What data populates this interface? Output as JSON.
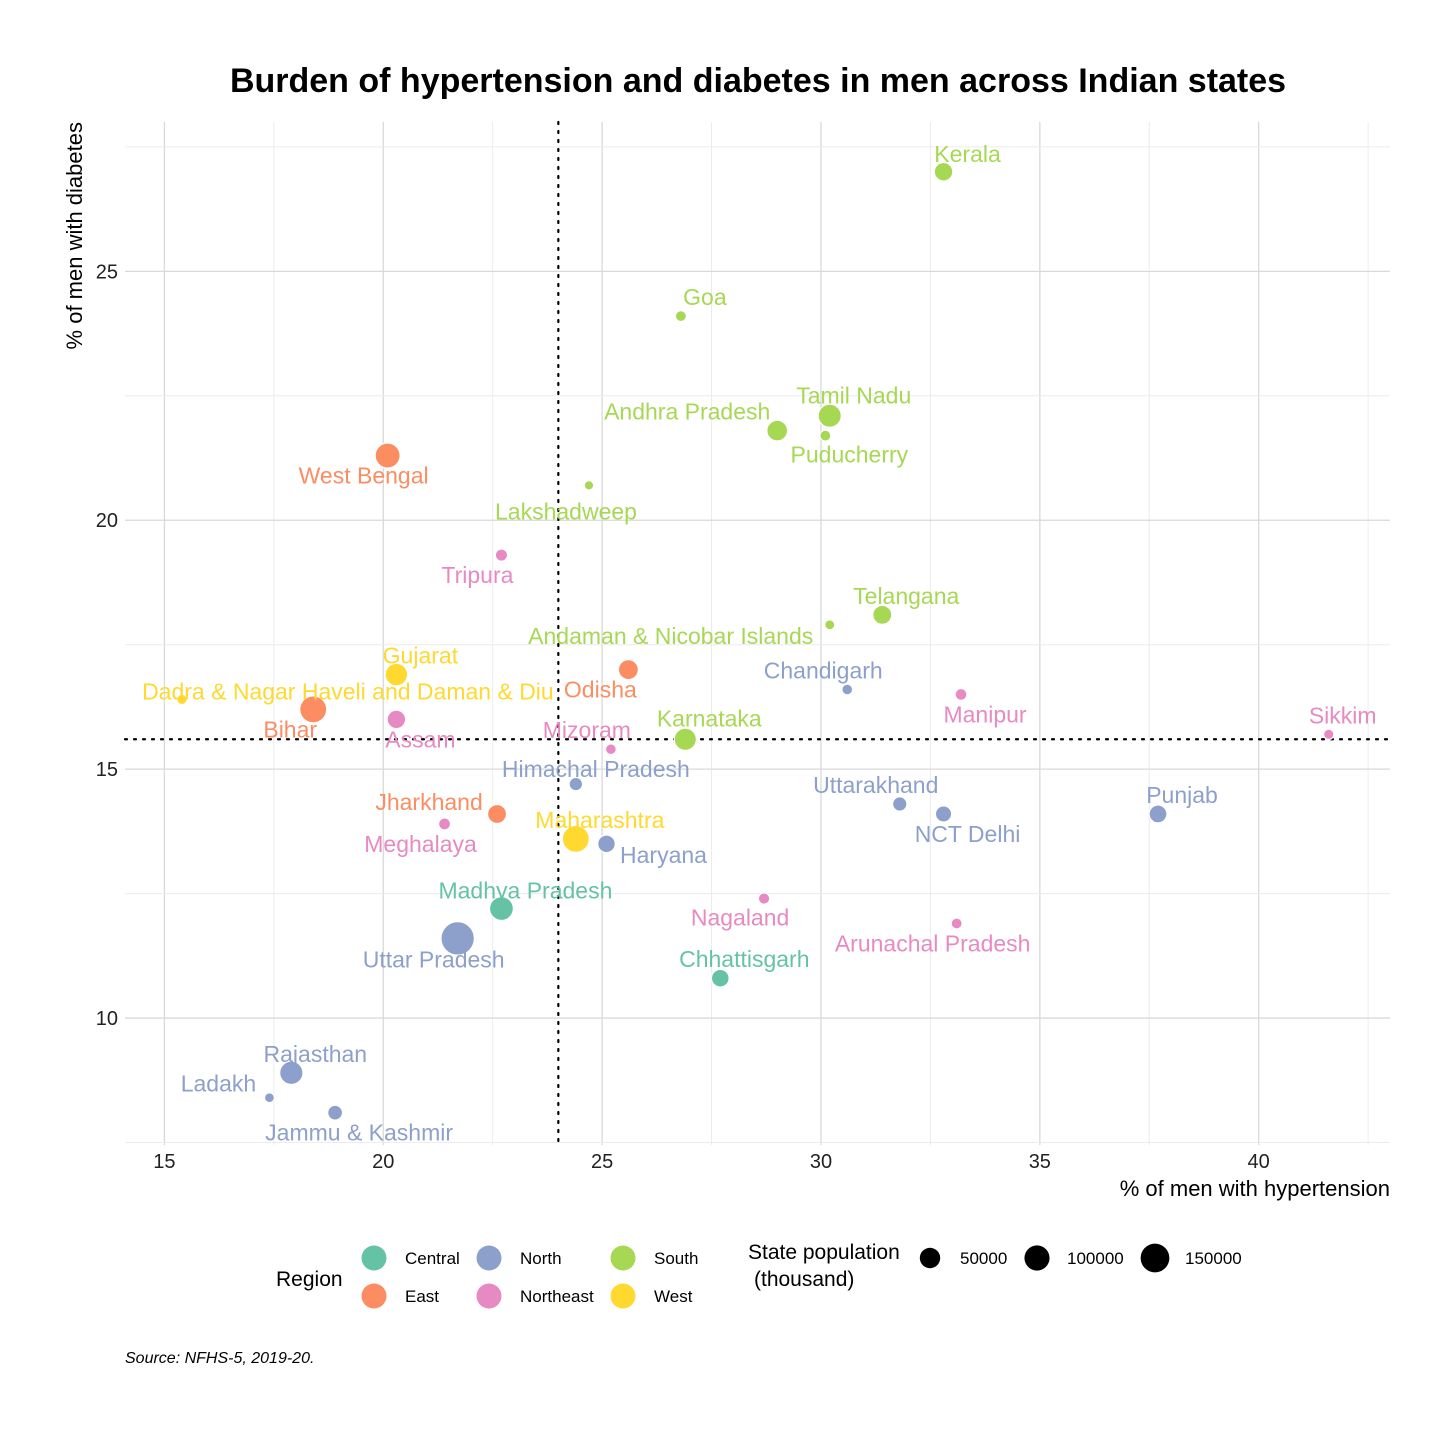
{
  "chart_data": {
    "type": "scatter",
    "title": "Burden of hypertension and diabetes in men across Indian states",
    "xlabel": "% of men with hypertension",
    "ylabel": "% of men with diabetes",
    "xlim": [
      14.1,
      43
    ],
    "ylim": [
      7.45,
      28.0
    ],
    "xticks": [
      15,
      20,
      25,
      30,
      35,
      40
    ],
    "yticks": [
      10,
      15,
      20,
      25
    ],
    "grid": true,
    "reference_lines": {
      "x": 24.0,
      "y": 15.6
    },
    "regions": [
      {
        "name": "Central",
        "color": "#66c2a5"
      },
      {
        "name": "East",
        "color": "#fc8d62"
      },
      {
        "name": "North",
        "color": "#8da0cb"
      },
      {
        "name": "Northeast",
        "color": "#e78ac3"
      },
      {
        "name": "South",
        "color": "#a6d854"
      },
      {
        "name": "West",
        "color": "#ffd92f"
      }
    ],
    "points": [
      {
        "label": "Kerala",
        "region": "South",
        "x": 32.8,
        "y": 27.0,
        "pop": 35000
      },
      {
        "label": "Goa",
        "region": "South",
        "x": 26.8,
        "y": 24.1,
        "pop": 1500
      },
      {
        "label": "Tamil Nadu",
        "region": "South",
        "x": 30.2,
        "y": 22.1,
        "pop": 77000
      },
      {
        "label": "Andhra Pradesh",
        "region": "South",
        "x": 29.0,
        "y": 21.8,
        "pop": 53000
      },
      {
        "label": "Puducherry",
        "region": "South",
        "x": 30.1,
        "y": 21.7,
        "pop": 1500
      },
      {
        "label": "Lakshadweep",
        "region": "South",
        "x": 24.7,
        "y": 20.7,
        "pop": 70
      },
      {
        "label": "Telangana",
        "region": "South",
        "x": 31.4,
        "y": 18.1,
        "pop": 38000
      },
      {
        "label": "Andaman & Nicobar Islands",
        "region": "South",
        "x": 30.2,
        "y": 17.9,
        "pop": 400
      },
      {
        "label": "Karnataka",
        "region": "South",
        "x": 26.9,
        "y": 15.6,
        "pop": 67000
      },
      {
        "label": "West Bengal",
        "region": "East",
        "x": 20.1,
        "y": 21.3,
        "pop": 99000
      },
      {
        "label": "Odisha",
        "region": "East",
        "x": 25.6,
        "y": 17.0,
        "pop": 46000
      },
      {
        "label": "Bihar",
        "region": "East",
        "x": 18.4,
        "y": 16.2,
        "pop": 124000
      },
      {
        "label": "Jharkhand",
        "region": "East",
        "x": 22.6,
        "y": 14.1,
        "pop": 38000
      },
      {
        "label": "Tripura",
        "region": "Northeast",
        "x": 22.7,
        "y": 19.3,
        "pop": 4000
      },
      {
        "label": "Manipur",
        "region": "Northeast",
        "x": 33.2,
        "y": 16.5,
        "pop": 3000
      },
      {
        "label": "Assam",
        "region": "Northeast",
        "x": 20.3,
        "y": 16.0,
        "pop": 35000
      },
      {
        "label": "Sikkim",
        "region": "Northeast",
        "x": 41.6,
        "y": 15.7,
        "pop": 700
      },
      {
        "label": "Mizoram",
        "region": "Northeast",
        "x": 25.2,
        "y": 15.4,
        "pop": 1200
      },
      {
        "label": "Meghalaya",
        "region": "Northeast",
        "x": 21.4,
        "y": 13.9,
        "pop": 3300
      },
      {
        "label": "Nagaland",
        "region": "Northeast",
        "x": 28.7,
        "y": 12.4,
        "pop": 2200
      },
      {
        "label": "Arunachal Pradesh",
        "region": "Northeast",
        "x": 33.1,
        "y": 11.9,
        "pop": 1500
      },
      {
        "label": "Chandigarh",
        "region": "North",
        "x": 30.6,
        "y": 16.6,
        "pop": 1200
      },
      {
        "label": "Himachal Pradesh",
        "region": "North",
        "x": 24.4,
        "y": 14.7,
        "pop": 7400
      },
      {
        "label": "Uttarakhand",
        "region": "North",
        "x": 31.8,
        "y": 14.3,
        "pop": 11000
      },
      {
        "label": "NCT Delhi",
        "region": "North",
        "x": 32.8,
        "y": 14.1,
        "pop": 20000
      },
      {
        "label": "Punjab",
        "region": "North",
        "x": 37.7,
        "y": 14.1,
        "pop": 30000
      },
      {
        "label": "Haryana",
        "region": "North",
        "x": 25.1,
        "y": 13.5,
        "pop": 28000
      },
      {
        "label": "Uttar Pradesh",
        "region": "North",
        "x": 21.7,
        "y": 11.6,
        "pop": 230000
      },
      {
        "label": "Rajasthan",
        "region": "North",
        "x": 17.9,
        "y": 8.9,
        "pop": 79000
      },
      {
        "label": "Ladakh",
        "region": "North",
        "x": 17.4,
        "y": 8.4,
        "pop": 300
      },
      {
        "label": "Jammu & Kashmir",
        "region": "North",
        "x": 18.9,
        "y": 8.1,
        "pop": 13000
      },
      {
        "label": "Gujarat",
        "region": "West",
        "x": 20.3,
        "y": 16.9,
        "pop": 70000
      },
      {
        "label": "Dadra & Nagar Haveli and Daman & Diu",
        "region": "West",
        "x": 15.4,
        "y": 16.4,
        "pop": 600
      },
      {
        "label": "Maharashtra",
        "region": "West",
        "x": 24.4,
        "y": 13.6,
        "pop": 124000
      },
      {
        "label": "Madhya Pradesh",
        "region": "Central",
        "x": 22.7,
        "y": 12.2,
        "pop": 85000
      },
      {
        "label": "Chhattisgarh",
        "region": "Central",
        "x": 27.7,
        "y": 10.8,
        "pop": 29000
      }
    ],
    "legend": {
      "region_title": "Region",
      "size_title_line1": "State population",
      "size_title_line2": "(thousand)",
      "size_values": [
        50000,
        100000,
        150000
      ],
      "size_labels": [
        "50000",
        "100000",
        "150000"
      ]
    },
    "caption": "Source: NFHS-5, 2019-20."
  }
}
